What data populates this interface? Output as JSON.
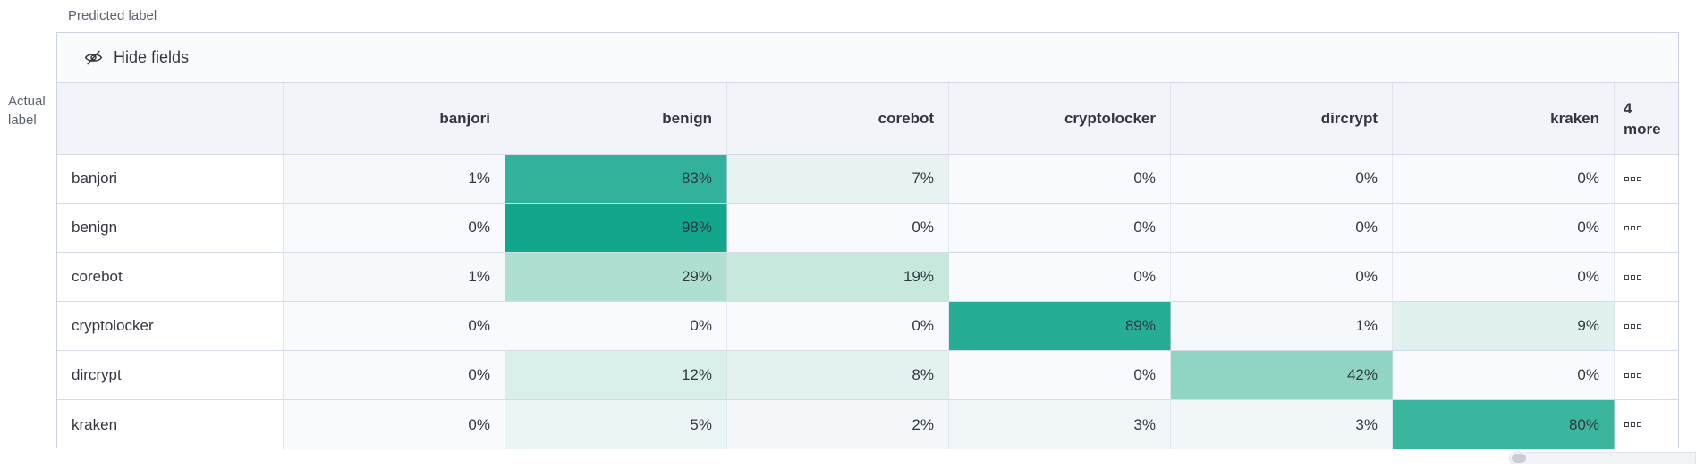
{
  "axis": {
    "predicted_label": "Predicted label",
    "actual_label": {
      "line1": "Actual",
      "line2": "label"
    }
  },
  "toolbar": {
    "hide_fields_label": "Hide fields",
    "icon": "eye-closed-icon"
  },
  "matrix": {
    "columns": [
      "banjori",
      "benign",
      "corebot",
      "cryptolocker",
      "dircrypt",
      "kraken"
    ],
    "more_column": {
      "count": "4",
      "label": "more"
    },
    "rows": [
      {
        "label": "banjori",
        "cells": [
          {
            "display": "1%",
            "value": 1
          },
          {
            "display": "83%",
            "value": 83
          },
          {
            "display": "7%",
            "value": 7
          },
          {
            "display": "0%",
            "value": 0
          },
          {
            "display": "0%",
            "value": 0
          },
          {
            "display": "0%",
            "value": 0
          }
        ]
      },
      {
        "label": "benign",
        "cells": [
          {
            "display": "0%",
            "value": 0
          },
          {
            "display": "98%",
            "value": 98
          },
          {
            "display": "0%",
            "value": 0
          },
          {
            "display": "0%",
            "value": 0
          },
          {
            "display": "0%",
            "value": 0
          },
          {
            "display": "0%",
            "value": 0
          }
        ]
      },
      {
        "label": "corebot",
        "cells": [
          {
            "display": "1%",
            "value": 1
          },
          {
            "display": "29%",
            "value": 29
          },
          {
            "display": "19%",
            "value": 19
          },
          {
            "display": "0%",
            "value": 0
          },
          {
            "display": "0%",
            "value": 0
          },
          {
            "display": "0%",
            "value": 0
          }
        ]
      },
      {
        "label": "cryptolocker",
        "cells": [
          {
            "display": "0%",
            "value": 0
          },
          {
            "display": "0%",
            "value": 0
          },
          {
            "display": "0%",
            "value": 0
          },
          {
            "display": "89%",
            "value": 89
          },
          {
            "display": "1%",
            "value": 1
          },
          {
            "display": "9%",
            "value": 9
          }
        ]
      },
      {
        "label": "dircrypt",
        "cells": [
          {
            "display": "0%",
            "value": 0
          },
          {
            "display": "12%",
            "value": 12
          },
          {
            "display": "8%",
            "value": 8
          },
          {
            "display": "0%",
            "value": 0
          },
          {
            "display": "42%",
            "value": 42
          },
          {
            "display": "0%",
            "value": 0
          }
        ]
      },
      {
        "label": "kraken",
        "cells": [
          {
            "display": "0%",
            "value": 0
          },
          {
            "display": "5%",
            "value": 5
          },
          {
            "display": "2%",
            "value": 2
          },
          {
            "display": "3%",
            "value": 3
          },
          {
            "display": "3%",
            "value": 3
          },
          {
            "display": "80%",
            "value": 80
          }
        ]
      }
    ],
    "cell_actions_icon": "boxes-horizontal-icon"
  },
  "colors": {
    "text": "#343741",
    "subdued_text": "#5a6270",
    "border": "#d3dae6",
    "header_bg": "#f2f4f9",
    "accent_teal_max": "#0da48b",
    "heat_empty": "#f9fafd",
    "heat_scale_stops": [
      [
        0,
        "#f9fafd"
      ],
      [
        20,
        "#c4e7db"
      ],
      [
        45,
        "#89d2c0"
      ],
      [
        100,
        "#0da48b"
      ]
    ]
  },
  "chart_data": {
    "type": "heatmap",
    "title": "Confusion matrix",
    "xlabel": "Predicted label",
    "ylabel": "Actual label",
    "x_categories": [
      "banjori",
      "benign",
      "corebot",
      "cryptolocker",
      "dircrypt",
      "kraken"
    ],
    "y_categories": [
      "banjori",
      "benign",
      "corebot",
      "cryptolocker",
      "dircrypt",
      "kraken"
    ],
    "unit": "%",
    "values": [
      [
        1,
        83,
        7,
        0,
        0,
        0
      ],
      [
        0,
        98,
        0,
        0,
        0,
        0
      ],
      [
        1,
        29,
        19,
        0,
        0,
        0
      ],
      [
        0,
        0,
        0,
        89,
        1,
        9
      ],
      [
        0,
        12,
        8,
        0,
        42,
        0
      ],
      [
        0,
        5,
        2,
        3,
        3,
        80
      ]
    ],
    "hidden_columns_note": "4 more",
    "legend_position": "none",
    "grid": true
  }
}
